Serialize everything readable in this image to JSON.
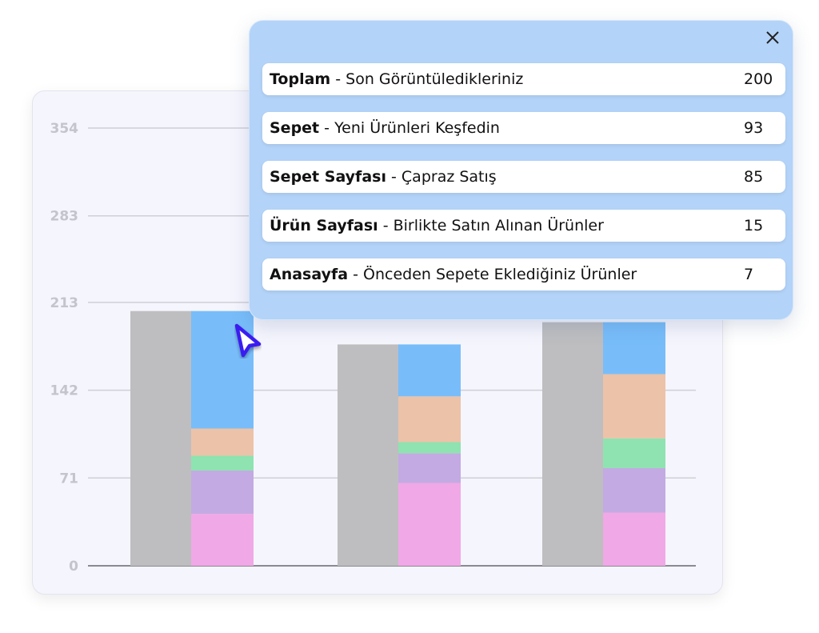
{
  "chart_data": {
    "type": "bar",
    "stacked_with_total": true,
    "yticks": [
      "0",
      "71",
      "142",
      "213",
      "283",
      "354"
    ],
    "ytick_values": [
      0,
      71,
      142,
      213,
      283,
      354
    ],
    "ylim": [
      0,
      354
    ],
    "grid": true,
    "groups": 3,
    "total_values": [
      206,
      179,
      197
    ],
    "series": [
      {
        "name": "pink",
        "color": "#f0a8e6",
        "values": [
          42,
          67,
          43
        ]
      },
      {
        "name": "purple",
        "color": "#c3aae2",
        "values": [
          35,
          24,
          36
        ]
      },
      {
        "name": "green",
        "color": "#8ee3b0",
        "values": [
          12,
          9,
          24
        ]
      },
      {
        "name": "peach",
        "color": "#ecc2a8",
        "values": [
          22,
          37,
          52
        ]
      },
      {
        "name": "blue",
        "color": "#78bdfa",
        "values": [
          95,
          42,
          42
        ]
      }
    ],
    "total_color": "#bebec0"
  },
  "popup": {
    "rows": [
      {
        "bold": "Toplam",
        "rest": " - Son Görüntüledikleriniz",
        "value": "200"
      },
      {
        "bold": "Sepet",
        "rest": " - Yeni Ürünleri Keşfedin",
        "value": "93"
      },
      {
        "bold": "Sepet Sayfası",
        "rest": " - Çapraz Satış",
        "value": "85"
      },
      {
        "bold": "Ürün Sayfası",
        "rest": " - Birlikte Satın Alınan Ürünler",
        "value": "15"
      },
      {
        "bold": "Anasayfa",
        "rest": " - Önceden Sepete Eklediğiniz Ürünler",
        "value": "7"
      }
    ]
  }
}
